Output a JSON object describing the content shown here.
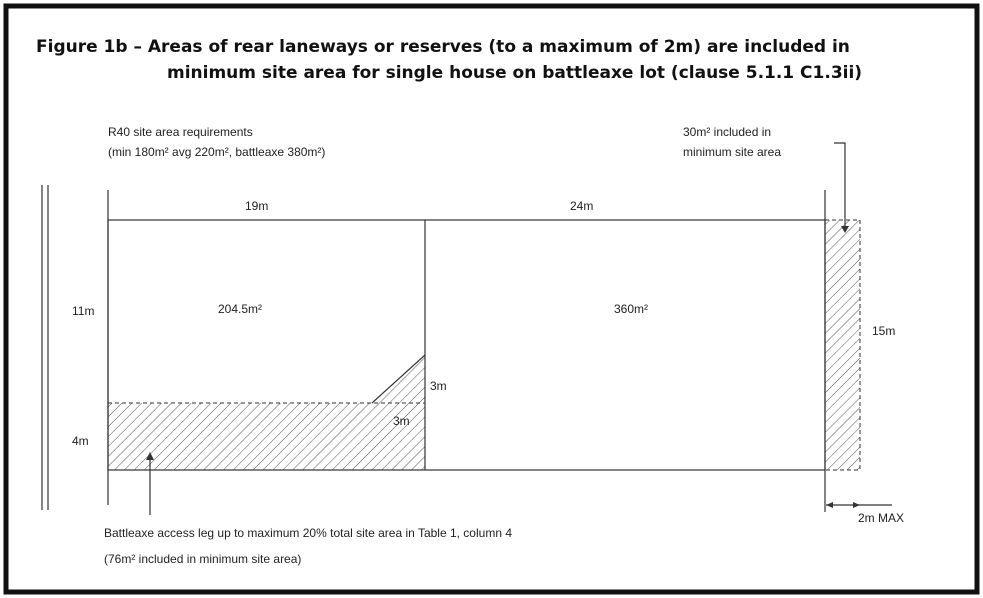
{
  "title": {
    "line1": "Figure 1b – Areas of rear laneways or reserves (to a maximum of 2m) are included in",
    "line2": "minimum site area for single house on battleaxe lot (clause 5.1.1 C1.3ii)"
  },
  "requirements": {
    "line1": "R40 site area requirements",
    "line2": "(min 180m² avg 220m², battleaxe 380m²)"
  },
  "included_note": {
    "line1": "30m² included in",
    "line2": "minimum site area"
  },
  "dimensions": {
    "front_width": "19m",
    "rear_width": "24m",
    "front_depth": "11m",
    "rear_depth": "15m",
    "splay_vertical": "3m",
    "splay_horizontal": "3m",
    "leg_width": "4m",
    "reserve_max": "2m MAX"
  },
  "areas": {
    "front_lot": "204.5m²",
    "rear_lot": "360m²"
  },
  "access_note": {
    "line1": "Battleaxe access leg up to maximum 20% total site area in Table 1, column 4",
    "line2": "(76m² included in minimum site area)"
  }
}
